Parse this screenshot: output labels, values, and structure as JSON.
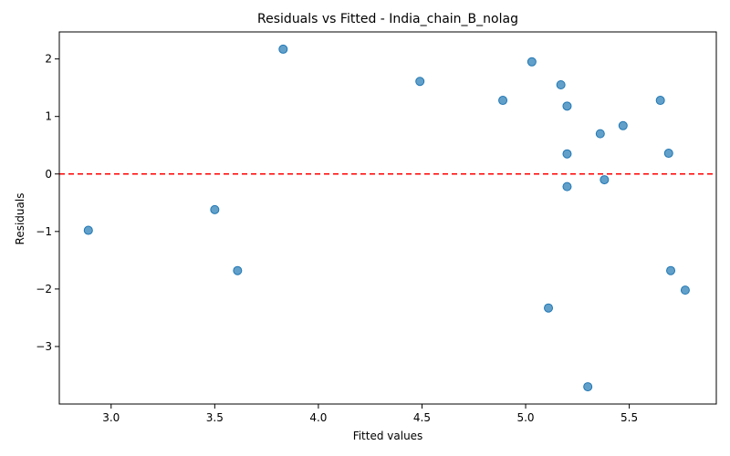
{
  "chart_data": {
    "type": "scatter",
    "title": "Residuals vs Fitted - India_chain_B_nolag",
    "xlabel": "Fitted values",
    "ylabel": "Residuals",
    "xlim": [
      2.75,
      5.92
    ],
    "ylim": [
      -4.0,
      2.47
    ],
    "xticks": [
      3.0,
      3.5,
      4.0,
      4.5,
      5.0,
      5.5
    ],
    "yticks": [
      -3,
      -2,
      -1,
      0,
      1,
      2
    ],
    "xtick_labels": [
      "3.0",
      "3.5",
      "4.0",
      "4.5",
      "5.0",
      "5.5"
    ],
    "ytick_labels": [
      "−3",
      "−2",
      "−1",
      "0",
      "1",
      "2"
    ],
    "reference_line": {
      "y": 0,
      "style": "dashed",
      "color": "#ff0000"
    },
    "marker_color": "#1f77b4",
    "grid": false,
    "points": [
      {
        "x": 2.89,
        "y": -0.98
      },
      {
        "x": 3.5,
        "y": -0.62
      },
      {
        "x": 3.61,
        "y": -1.68
      },
      {
        "x": 3.83,
        "y": 2.17
      },
      {
        "x": 4.49,
        "y": 1.61
      },
      {
        "x": 4.89,
        "y": 1.28
      },
      {
        "x": 5.03,
        "y": 1.95
      },
      {
        "x": 5.11,
        "y": -2.33
      },
      {
        "x": 5.17,
        "y": 1.55
      },
      {
        "x": 5.2,
        "y": 1.18
      },
      {
        "x": 5.2,
        "y": 0.35
      },
      {
        "x": 5.2,
        "y": -0.22
      },
      {
        "x": 5.3,
        "y": -3.7
      },
      {
        "x": 5.36,
        "y": 0.7
      },
      {
        "x": 5.38,
        "y": -0.1
      },
      {
        "x": 5.47,
        "y": 0.84
      },
      {
        "x": 5.65,
        "y": 1.28
      },
      {
        "x": 5.69,
        "y": 0.36
      },
      {
        "x": 5.7,
        "y": -1.68
      },
      {
        "x": 5.77,
        "y": -2.02
      }
    ]
  }
}
